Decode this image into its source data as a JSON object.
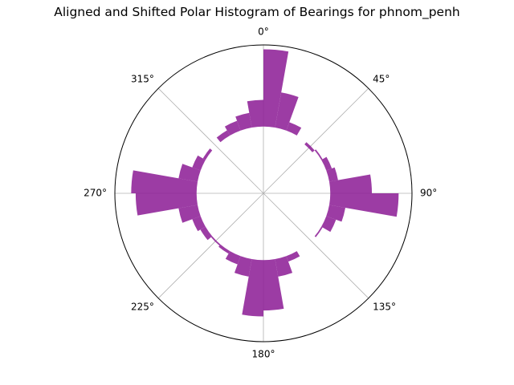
{
  "chart_data": {
    "type": "polar-bar",
    "title": "Aligned and Shifted Polar Histogram of Bearings for phnom_penh",
    "theta_direction": "clockwise",
    "theta_zero": "top",
    "tick_labels": [
      "0°",
      "45°",
      "90°",
      "135°",
      "180°",
      "225°",
      "270°",
      "315°"
    ],
    "bin_width_deg": 10,
    "inner_radius": 0.45,
    "r_max": 1.0,
    "bar_color": "#8B1A94",
    "bar_alpha": 0.85,
    "bins": [
      {
        "start": 0,
        "value": 0.97
      },
      {
        "start": 10,
        "value": 0.69
      },
      {
        "start": 20,
        "value": 0.51
      },
      {
        "start": 30,
        "value": 0.45
      },
      {
        "start": 40,
        "value": 0.43
      },
      {
        "start": 50,
        "value": 0.46
      },
      {
        "start": 60,
        "value": 0.49
      },
      {
        "start": 70,
        "value": 0.51
      },
      {
        "start": 80,
        "value": 0.73
      },
      {
        "start": 90,
        "value": 0.91
      },
      {
        "start": 100,
        "value": 0.56
      },
      {
        "start": 110,
        "value": 0.52
      },
      {
        "start": 120,
        "value": 0.46
      },
      {
        "start": 130,
        "value": 0.45
      },
      {
        "start": 140,
        "value": 0.45
      },
      {
        "start": 150,
        "value": 0.49
      },
      {
        "start": 160,
        "value": 0.57
      },
      {
        "start": 170,
        "value": 0.79
      },
      {
        "start": 180,
        "value": 0.83
      },
      {
        "start": 190,
        "value": 0.57
      },
      {
        "start": 200,
        "value": 0.51
      },
      {
        "start": 210,
        "value": 0.47
      },
      {
        "start": 220,
        "value": 0.46
      },
      {
        "start": 230,
        "value": 0.49
      },
      {
        "start": 240,
        "value": 0.51
      },
      {
        "start": 250,
        "value": 0.58
      },
      {
        "start": 260,
        "value": 0.86
      },
      {
        "start": 270,
        "value": 0.89
      },
      {
        "start": 280,
        "value": 0.58
      },
      {
        "start": 290,
        "value": 0.51
      },
      {
        "start": 300,
        "value": 0.47
      },
      {
        "start": 310,
        "value": 0.45
      },
      {
        "start": 320,
        "value": 0.49
      },
      {
        "start": 330,
        "value": 0.52
      },
      {
        "start": 340,
        "value": 0.55
      },
      {
        "start": 350,
        "value": 0.63
      }
    ]
  }
}
